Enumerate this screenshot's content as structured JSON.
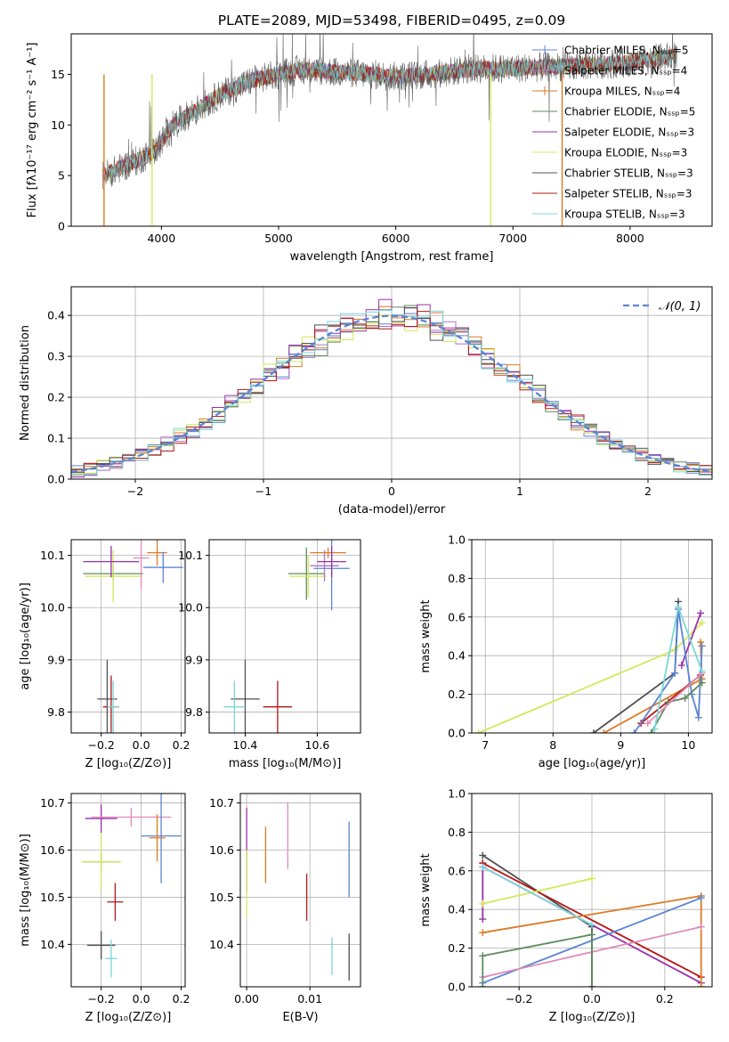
{
  "figure_title": "PLATE=2089, MJD=53498, FIBERID=0495, z=0.09",
  "colors": {
    "Chabrier MILES": "#5b84d6",
    "Salpeter MILES": "#ae75c7",
    "Kroupa MILES": "#de7a24",
    "Chabrier ELODIE": "#5e8a5c",
    "Salpeter ELODIE": "#9b2faa",
    "Kroupa ELODIE": "#d3e85c",
    "Chabrier STELIB": "#505050",
    "Salpeter STELIB": "#b51515",
    "Kroupa STELIB": "#7ad6d8",
    "pink": "#e08ab8"
  },
  "chart_data": [
    {
      "id": "spectrum",
      "type": "line",
      "title": "PLATE=2089, MJD=53498, FIBERID=0495, z=0.09",
      "xlabel": "wavelength [Angstrom, rest frame]",
      "ylabel": "Flux [fλ10⁻¹⁷ erg cm⁻² s⁻¹ A⁻¹]",
      "xlim": [
        3230,
        8700
      ],
      "ylim": [
        0,
        19
      ],
      "xticks": [
        4000,
        5000,
        6000,
        7000,
        8000
      ],
      "yticks": [
        0,
        5,
        10,
        15
      ],
      "grid": false,
      "legend_position": "right",
      "legend": [
        {
          "label": "Chabrier MILES, Nₛₛₚ=5",
          "color": "#5b84d6"
        },
        {
          "label": "Salpeter MILES, Nₛₛₚ=4",
          "color": "#ae75c7"
        },
        {
          "label": "Kroupa MILES, Nₛₛₚ=4",
          "color": "#de7a24"
        },
        {
          "label": "Chabrier ELODIE, Nₛₛₚ=5",
          "color": "#5e8a5c"
        },
        {
          "label": "Salpeter ELODIE, Nₛₛₚ=3",
          "color": "#9b2faa"
        },
        {
          "label": "Kroupa ELODIE, Nₛₛₚ=3",
          "color": "#d3e85c"
        },
        {
          "label": "Chabrier STELIB, Nₛₛₚ=3",
          "color": "#505050"
        },
        {
          "label": "Salpeter STELIB, Nₛₛₚ=3",
          "color": "#b51515"
        },
        {
          "label": "Kroupa STELIB, Nₛₛₚ=3",
          "color": "#7ad6d8"
        }
      ],
      "continuum": [
        [
          3500,
          5
        ],
        [
          3800,
          6.5
        ],
        [
          3950,
          7.5
        ],
        [
          4100,
          10
        ],
        [
          4300,
          11.5
        ],
        [
          4500,
          13
        ],
        [
          4800,
          14.5
        ],
        [
          5000,
          15
        ],
        [
          5200,
          15.5
        ],
        [
          5500,
          15.2
        ],
        [
          5800,
          15
        ],
        [
          6000,
          14.8
        ],
        [
          6300,
          15
        ],
        [
          6600,
          15.5
        ],
        [
          7000,
          15.6
        ],
        [
          7500,
          15.8
        ],
        [
          8000,
          16.2
        ],
        [
          8400,
          16.8
        ]
      ]
    },
    {
      "id": "residuals",
      "type": "histogram",
      "xlabel": "(data-model)/error",
      "ylabel": "Normed distribution",
      "xlim": [
        -2.5,
        2.5
      ],
      "ylim": [
        0,
        0.47
      ],
      "xticks": [
        -2,
        -1,
        0,
        1,
        2
      ],
      "yticks": [
        0.0,
        0.1,
        0.2,
        0.3,
        0.4
      ],
      "grid": true,
      "legend_position": "top-right",
      "legend": [
        {
          "label": "𝒩(0, 1)",
          "color": "#5b84d6",
          "style": "dashed"
        }
      ]
    },
    {
      "id": "age-vs-Z",
      "type": "errorbar",
      "xlabel": "Z [log₁₀(Z/Z⊙)]",
      "ylabel": "age  [log₁₀(age/yr)]",
      "xlim": [
        -0.35,
        0.22
      ],
      "ylim": [
        9.76,
        10.13
      ],
      "xticks": [
        -0.2,
        0.0,
        0.2
      ],
      "yticks": [
        9.8,
        9.9,
        10.0,
        10.1
      ],
      "grid": true,
      "points": [
        {
          "x": -0.17,
          "y": 9.825,
          "xe": 0.05,
          "ye": 0.075,
          "color": "#505050"
        },
        {
          "x": -0.15,
          "y": 9.81,
          "xe": 0.04,
          "ye": 0.06,
          "color": "#b51515"
        },
        {
          "x": -0.14,
          "y": 9.81,
          "xe": 0.03,
          "ye": 0.05,
          "color": "#7ad6d8"
        },
        {
          "x": -0.14,
          "y": 10.065,
          "xe": 0.15,
          "ye": 0.015,
          "color": "#5e8a5c"
        },
        {
          "x": -0.14,
          "y": 10.06,
          "xe": 0.14,
          "ye": 0.05,
          "color": "#d3e85c"
        },
        {
          "x": -0.15,
          "y": 10.088,
          "xe": 0.14,
          "ye": 0.03,
          "color": "#9b2faa"
        },
        {
          "x": 0.08,
          "y": 10.105,
          "xe": 0.05,
          "ye": 0.025,
          "color": "#de7a24"
        },
        {
          "x": 0.11,
          "y": 10.077,
          "xe": 0.1,
          "ye": 0.03,
          "color": "#5b84d6"
        },
        {
          "x": 0.0,
          "y": 10.095,
          "xe": 0.04,
          "ye": 0.06,
          "color": "#e08ab8"
        }
      ]
    },
    {
      "id": "age-vs-mass",
      "type": "errorbar",
      "xlabel": "mass [log₁₀(M/M⊙)]",
      "ylabel": "",
      "xlim": [
        10.3,
        10.72
      ],
      "ylim": [
        9.76,
        10.13
      ],
      "xticks": [
        10.4,
        10.6
      ],
      "yticks": [
        9.8,
        9.9,
        10.0,
        10.1
      ],
      "grid": true,
      "points": [
        {
          "x": 10.4,
          "y": 9.825,
          "xe": 0.04,
          "ye": 0.075,
          "color": "#505050"
        },
        {
          "x": 10.49,
          "y": 9.81,
          "xe": 0.04,
          "ye": 0.05,
          "color": "#b51515"
        },
        {
          "x": 10.37,
          "y": 9.81,
          "xe": 0.03,
          "ye": 0.05,
          "color": "#7ad6d8"
        },
        {
          "x": 10.57,
          "y": 10.065,
          "xe": 0.05,
          "ye": 0.05,
          "color": "#5e8a5c"
        },
        {
          "x": 10.575,
          "y": 10.06,
          "xe": 0.05,
          "ye": 0.04,
          "color": "#d3e85c"
        },
        {
          "x": 10.62,
          "y": 10.08,
          "xe": 0.04,
          "ye": 0.03,
          "color": "#ae75c7"
        },
        {
          "x": 10.63,
          "y": 10.105,
          "xe": 0.05,
          "ye": 0.01,
          "color": "#de7a24"
        },
        {
          "x": 10.64,
          "y": 10.075,
          "xe": 0.05,
          "ye": 0.08,
          "color": "#5b84d6"
        },
        {
          "x": 10.64,
          "y": 10.088,
          "xe": 0.04,
          "ye": 0.03,
          "color": "#9b2faa"
        }
      ]
    },
    {
      "id": "weight-vs-age",
      "type": "line",
      "xlabel": "age  [log₁₀(age/yr)]",
      "ylabel": "mass weight",
      "xlim": [
        6.8,
        10.35
      ],
      "ylim": [
        0,
        1
      ],
      "xticks": [
        7,
        8,
        9,
        10
      ],
      "yticks": [
        0.0,
        0.2,
        0.4,
        0.6,
        0.8,
        1.0
      ],
      "grid": true,
      "series": [
        {
          "color": "#d3e85c",
          "points": [
            [
              6.9,
              0.0
            ],
            [
              9.8,
              0.43
            ],
            [
              10.2,
              0.57
            ]
          ]
        },
        {
          "color": "#505050",
          "points": [
            [
              8.6,
              0.0
            ],
            [
              9.8,
              0.31
            ],
            [
              9.85,
              0.68
            ]
          ]
        },
        {
          "color": "#de7a24",
          "points": [
            [
              8.75,
              0.0
            ],
            [
              10.2,
              0.28
            ],
            [
              10.18,
              0.47
            ]
          ]
        },
        {
          "color": "#9b2faa",
          "points": [
            [
              9.9,
              0.35
            ],
            [
              10.18,
              0.62
            ]
          ]
        },
        {
          "color": "#b51515",
          "points": [
            [
              9.3,
              0.05
            ],
            [
              10.18,
              0.3
            ]
          ]
        },
        {
          "color": "#5b84d6",
          "points": [
            [
              9.2,
              0.0
            ],
            [
              9.8,
              0.31
            ],
            [
              9.85,
              0.64
            ],
            [
              10.05,
              0.2
            ],
            [
              10.15,
              0.08
            ],
            [
              10.2,
              0.45
            ]
          ]
        },
        {
          "color": "#5e8a5c",
          "points": [
            [
              9.45,
              0.0
            ],
            [
              9.7,
              0.16
            ],
            [
              9.95,
              0.18
            ],
            [
              10.2,
              0.26
            ]
          ]
        },
        {
          "color": "#e08ab8",
          "points": [
            [
              9.4,
              0.05
            ],
            [
              10.2,
              0.31
            ]
          ]
        },
        {
          "color": "#7ad6d8",
          "points": [
            [
              9.5,
              0.02
            ],
            [
              9.85,
              0.65
            ],
            [
              10.2,
              0.32
            ]
          ]
        }
      ]
    },
    {
      "id": "mass-vs-Z",
      "type": "errorbar",
      "xlabel": "Z [log₁₀(Z/Z⊙)]",
      "ylabel": "mass [log₁₀(M/M⊙)]",
      "xlim": [
        -0.35,
        0.22
      ],
      "ylim": [
        10.31,
        10.72
      ],
      "xticks": [
        -0.2,
        0.0,
        0.2
      ],
      "yticks": [
        10.4,
        10.5,
        10.6,
        10.7
      ],
      "grid": true,
      "points": [
        {
          "x": -0.2,
          "y": 10.398,
          "xe": 0.07,
          "ye": 0.03,
          "color": "#505050"
        },
        {
          "x": -0.13,
          "y": 10.49,
          "xe": 0.04,
          "ye": 0.04,
          "color": "#b51515"
        },
        {
          "x": -0.15,
          "y": 10.37,
          "xe": 0.03,
          "ye": 0.04,
          "color": "#7ad6d8"
        },
        {
          "x": -0.2,
          "y": 10.575,
          "xe": 0.09,
          "ye": 0.02,
          "color": "#5e8a5c"
        },
        {
          "x": -0.2,
          "y": 10.575,
          "xe": 0.1,
          "ye": 0.06,
          "color": "#d3e85c"
        },
        {
          "x": -0.2,
          "y": 10.667,
          "xe": 0.08,
          "ye": 0.03,
          "color": "#9b2faa"
        },
        {
          "x": -0.05,
          "y": 10.67,
          "xe": 0.2,
          "ye": 0.02,
          "color": "#e08ab8"
        },
        {
          "x": 0.1,
          "y": 10.63,
          "xe": 0.1,
          "ye": 0.1,
          "color": "#5b84d6"
        },
        {
          "x": 0.08,
          "y": 10.626,
          "xe": 0.04,
          "ye": 0.05,
          "color": "#de7a24"
        }
      ]
    },
    {
      "id": "mass-vs-EBV",
      "type": "errorbar",
      "xlabel": "E(B-V)",
      "ylabel": "",
      "xlim": [
        -0.001,
        0.018
      ],
      "ylim": [
        10.31,
        10.72
      ],
      "xticks": [
        0.0,
        0.01
      ],
      "yticks": [
        10.4,
        10.5,
        10.6,
        10.7
      ],
      "grid": true,
      "points": [
        {
          "x": 0.0,
          "y": 10.6,
          "xe": 0,
          "ye": 0.09,
          "color": "#9b2faa"
        },
        {
          "x": 0.0,
          "y": 10.53,
          "xe": 0,
          "ye": 0.07,
          "color": "#d3e85c"
        },
        {
          "x": 0.003,
          "y": 10.59,
          "xe": 0,
          "ye": 0.06,
          "color": "#de7a24"
        },
        {
          "x": 0.0065,
          "y": 10.63,
          "xe": 0,
          "ye": 0.07,
          "color": "#e08ab8"
        },
        {
          "x": 0.0095,
          "y": 10.5,
          "xe": 0,
          "ye": 0.05,
          "color": "#b51515"
        },
        {
          "x": 0.0135,
          "y": 10.375,
          "xe": 0,
          "ye": 0.04,
          "color": "#7ad6d8"
        },
        {
          "x": 0.0162,
          "y": 10.58,
          "xe": 0,
          "ye": 0.08,
          "color": "#5b84d6"
        },
        {
          "x": 0.0162,
          "y": 10.373,
          "xe": 0,
          "ye": 0.05,
          "color": "#505050"
        }
      ]
    },
    {
      "id": "weight-vs-Z",
      "type": "line",
      "xlabel": "Z [log₁₀(Z/Z⊙)]",
      "ylabel": "mass weight",
      "xlim": [
        -0.33,
        0.33
      ],
      "ylim": [
        0,
        1
      ],
      "xticks": [
        -0.2,
        0.0,
        0.2
      ],
      "yticks": [
        0.0,
        0.2,
        0.4,
        0.6,
        0.8,
        1.0
      ],
      "grid": true,
      "series": [
        {
          "color": "#505050",
          "points": [
            [
              -0.3,
              0.68
            ],
            [
              0.0,
              0.31
            ],
            [
              0.0,
              0.0
            ]
          ]
        },
        {
          "color": "#9b2faa",
          "points": [
            [
              -0.3,
              0.35
            ],
            [
              -0.3,
              0.62
            ],
            [
              0.3,
              0.02
            ]
          ]
        },
        {
          "color": "#b51515",
          "points": [
            [
              -0.3,
              0.64
            ],
            [
              0.3,
              0.05
            ]
          ]
        },
        {
          "color": "#d3e85c",
          "points": [
            [
              -0.3,
              0.43
            ],
            [
              0.0,
              0.56
            ]
          ]
        },
        {
          "color": "#de7a24",
          "points": [
            [
              -0.3,
              0.28
            ],
            [
              0.3,
              0.47
            ],
            [
              0.3,
              0.0
            ]
          ]
        },
        {
          "color": "#5b84d6",
          "points": [
            [
              -0.3,
              0.02
            ],
            [
              0.3,
              0.46
            ]
          ]
        },
        {
          "color": "#e08ab8",
          "points": [
            [
              -0.3,
              0.05
            ],
            [
              0.3,
              0.31
            ]
          ]
        },
        {
          "color": "#5e8a5c",
          "points": [
            [
              -0.3,
              0.0
            ],
            [
              -0.3,
              0.16
            ],
            [
              0.0,
              0.27
            ],
            [
              0.0,
              0.0
            ]
          ]
        },
        {
          "color": "#7ad6d8",
          "points": [
            [
              -0.3,
              0.62
            ],
            [
              0.0,
              0.32
            ]
          ]
        }
      ]
    }
  ]
}
